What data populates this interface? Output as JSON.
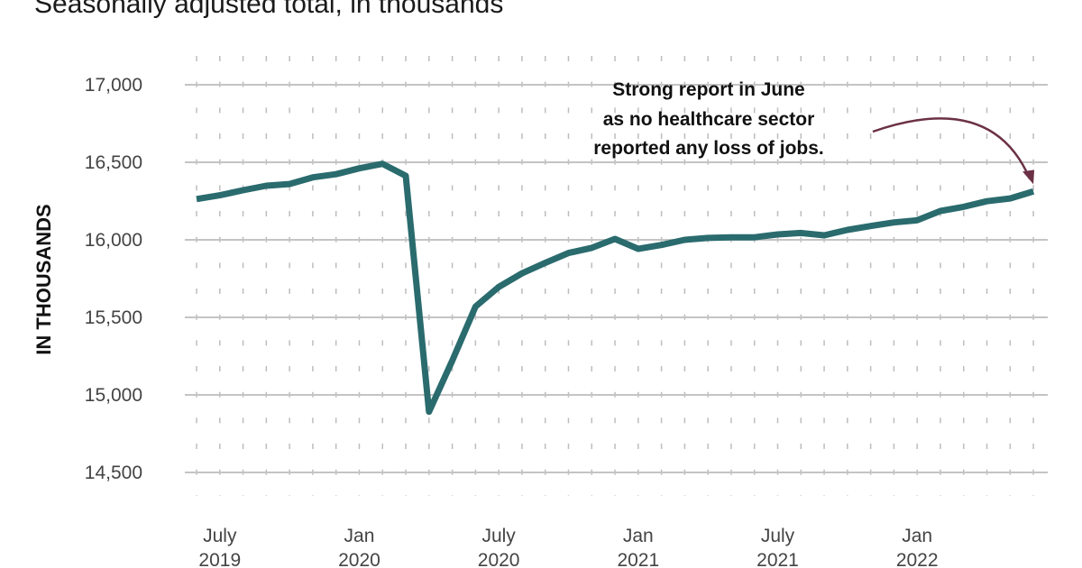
{
  "chart_data": {
    "type": "line",
    "subtitle": "Seasonally adjusted total, in thousands",
    "ylabel": "IN THOUSANDS",
    "xlabel": "",
    "ylim": [
      14500,
      17000
    ],
    "yticks": [
      14500,
      15000,
      15500,
      16000,
      16500,
      17000
    ],
    "ytick_labels": [
      "14,500",
      "15,000",
      "15,500",
      "16,000",
      "16,500",
      "17,000"
    ],
    "x_start": "2019-06",
    "x_end": "2022-06",
    "x_frequency": "monthly",
    "xtick_labels": [
      {
        "month": "2019-07",
        "line1": "July",
        "line2": "2019"
      },
      {
        "month": "2020-01",
        "line1": "Jan",
        "line2": "2020"
      },
      {
        "month": "2020-07",
        "line1": "July",
        "line2": "2020"
      },
      {
        "month": "2021-01",
        "line1": "Jan",
        "line2": "2021"
      },
      {
        "month": "2021-07",
        "line1": "July",
        "line2": "2021"
      },
      {
        "month": "2022-01",
        "line1": "Jan",
        "line2": "2022"
      }
    ],
    "grid": true,
    "line_color": "#2a6b6e",
    "arrow_color": "#6b3046",
    "series": [
      {
        "x": [
          "2019-06",
          "2019-07",
          "2019-08",
          "2019-09",
          "2019-10",
          "2019-11",
          "2019-12",
          "2020-01",
          "2020-02",
          "2020-03",
          "2020-04",
          "2020-05",
          "2020-06",
          "2020-07",
          "2020-08",
          "2020-09",
          "2020-10",
          "2020-11",
          "2020-12",
          "2021-01",
          "2021-02",
          "2021-03",
          "2021-04",
          "2021-05",
          "2021-06",
          "2021-07",
          "2021-08",
          "2021-09",
          "2021-10",
          "2021-11",
          "2021-12",
          "2022-01",
          "2022-02",
          "2022-03",
          "2022-04",
          "2022-05",
          "2022-06"
        ],
        "values": [
          16263,
          16287,
          16320,
          16349,
          16360,
          16403,
          16423,
          16461,
          16490,
          16413,
          14891,
          15221,
          15570,
          15696,
          15784,
          15851,
          15915,
          15948,
          16006,
          15942,
          15967,
          16000,
          16012,
          16016,
          16016,
          16035,
          16044,
          16029,
          16064,
          16089,
          16112,
          16126,
          16186,
          16213,
          16249,
          16267,
          16312
        ]
      }
    ],
    "annotation": {
      "lines": [
        "Strong report in June",
        "as no healthcare sector",
        "reported any loss of jobs."
      ],
      "target": "2022-06"
    }
  }
}
